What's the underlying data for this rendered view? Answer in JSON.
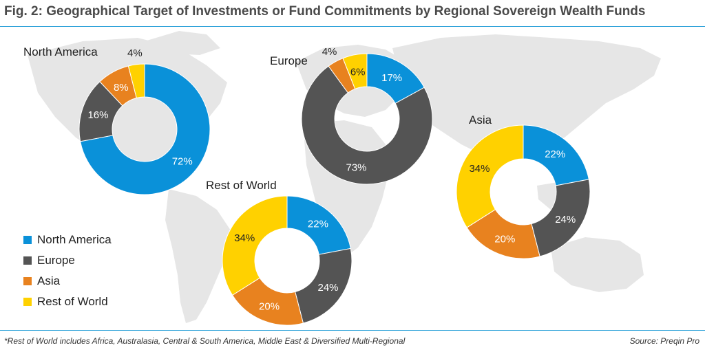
{
  "title": "Fig. 2: Geographical Target of Investments or Fund Commitments by Regional Sovereign Wealth Funds",
  "footnote": "*Rest of World includes Africa, Australasia, Central & South America, Middle East & Diversified Multi-Regional",
  "source": "Source: Preqin Pro",
  "legend": [
    {
      "label": "North America",
      "color": "#0a91d9"
    },
    {
      "label": "Europe",
      "color": "#545454"
    },
    {
      "label": "Asia",
      "color": "#e8821f"
    },
    {
      "label": "Rest of World",
      "color": "#ffd100"
    }
  ],
  "chart_data": [
    {
      "type": "pie",
      "style": "donut",
      "title": "North America",
      "categories": [
        "North America",
        "Europe",
        "Asia",
        "Rest of World"
      ],
      "values": [
        72,
        16,
        8,
        4
      ],
      "labels": [
        "72%",
        "16%",
        "8%",
        "4%"
      ]
    },
    {
      "type": "pie",
      "style": "donut",
      "title": "Europe",
      "categories": [
        "North America",
        "Europe",
        "Asia",
        "Rest of World"
      ],
      "values": [
        17,
        73,
        4,
        6
      ],
      "labels": [
        "17%",
        "73%",
        "4%",
        "6%"
      ]
    },
    {
      "type": "pie",
      "style": "donut",
      "title": "Asia",
      "categories": [
        "North America",
        "Europe",
        "Asia",
        "Rest of World"
      ],
      "values": [
        22,
        24,
        20,
        34
      ],
      "labels": [
        "22%",
        "24%",
        "20%",
        "34%"
      ]
    },
    {
      "type": "pie",
      "style": "donut",
      "title": "Rest of World",
      "categories": [
        "North America",
        "Europe",
        "Asia",
        "Rest of World"
      ],
      "values": [
        22,
        24,
        20,
        34
      ],
      "labels": [
        "22%",
        "24%",
        "20%",
        "34%"
      ]
    }
  ]
}
